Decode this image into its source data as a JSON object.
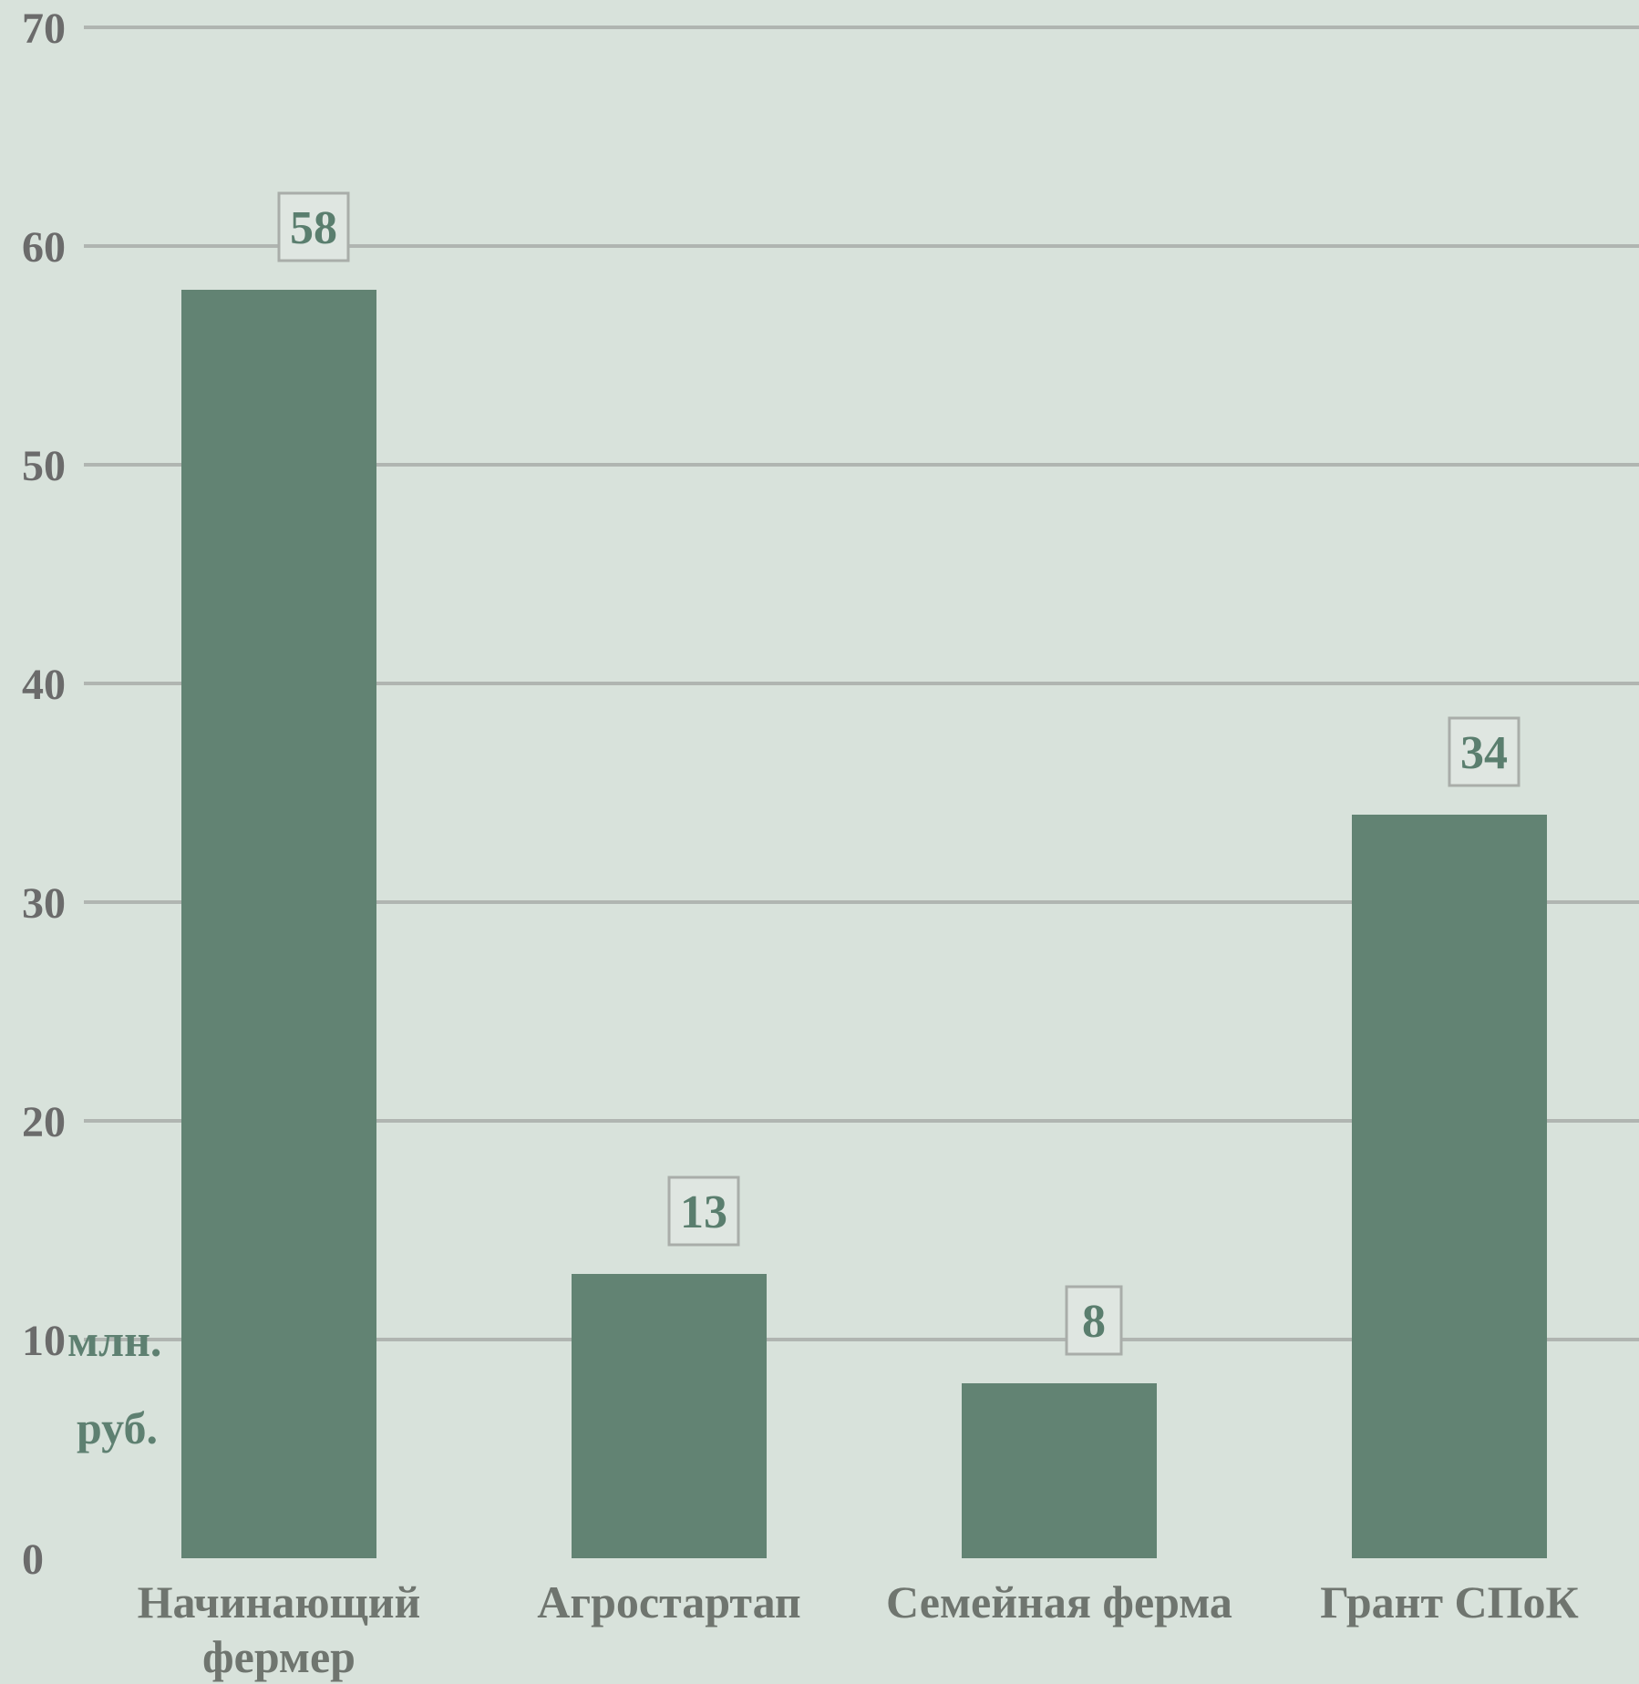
{
  "chart_data": {
    "type": "bar",
    "categories": [
      [
        "Начинающий",
        "фермер"
      ],
      [
        "Агростартап"
      ],
      [
        "Семейная ферма"
      ],
      [
        "Грант СПоК"
      ]
    ],
    "values": [
      58,
      13,
      8,
      34
    ],
    "ylim": [
      0,
      70
    ],
    "yticks": [
      0,
      10,
      20,
      30,
      40,
      50,
      60,
      70
    ],
    "unit_label": [
      "млн.",
      "руб."
    ],
    "grid": true,
    "colors": {
      "bar": "#628373",
      "grid": "#b0b5b1",
      "label_box_border": "#a9ada9",
      "label_box_fill": "#dfe6e1"
    }
  }
}
